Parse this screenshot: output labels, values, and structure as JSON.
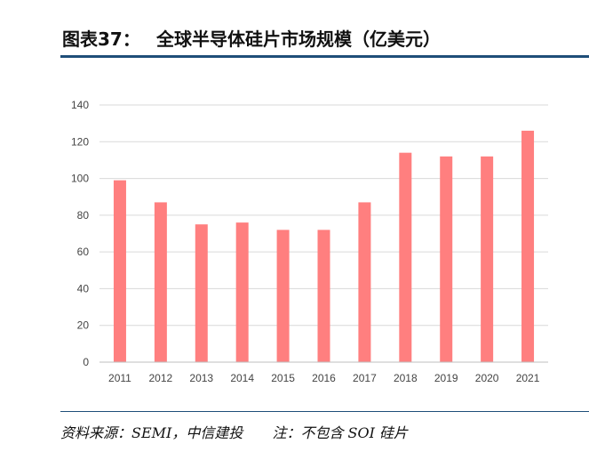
{
  "header": {
    "label": "图表37：",
    "title": "全球半导体硅片市场规模（亿美元）"
  },
  "chart_data": {
    "type": "bar",
    "categories": [
      "2011",
      "2012",
      "2013",
      "2014",
      "2015",
      "2016",
      "2017",
      "2018",
      "2019",
      "2020",
      "2021"
    ],
    "values": [
      99,
      87,
      75,
      76,
      72,
      72,
      87,
      114,
      112,
      112,
      126
    ],
    "ylim": [
      0,
      140
    ],
    "yticks": [
      0,
      20,
      40,
      60,
      80,
      100,
      120,
      140
    ],
    "grid": true,
    "bar_color": "#FF7F7F",
    "grid_color": "#D9D9D9"
  },
  "footer": {
    "source": "资料来源：SEMI，中信建投",
    "note": "注：不包含 SOI 硅片"
  }
}
